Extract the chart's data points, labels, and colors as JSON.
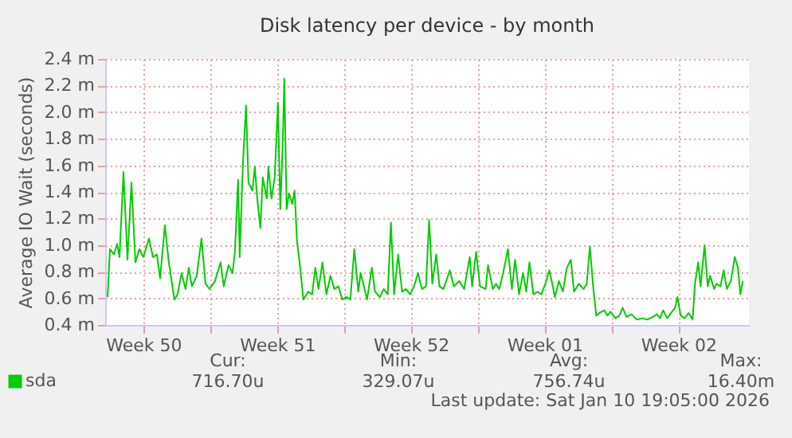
{
  "chart_data": {
    "type": "line",
    "title": "Disk latency per device - by month",
    "ylabel": "Average IO Wait (seconds)",
    "xlim": [
      "2025-12-09T12:00",
      "2026-01-12T04:48"
    ],
    "ylim": [
      0.4,
      2.4
    ],
    "xticks": [
      {
        "value": "2025-12-11T12:00",
        "label": "Week 50"
      },
      {
        "value": "2025-12-15T00:00",
        "label": null
      },
      {
        "value": "2025-12-18T12:00",
        "label": "Week 51"
      },
      {
        "value": "2025-12-22T00:00",
        "label": null
      },
      {
        "value": "2025-12-25T12:00",
        "label": "Week 52"
      },
      {
        "value": "2025-12-29T00:00",
        "label": null
      },
      {
        "value": "2026-01-01T12:00",
        "label": "Week 01"
      },
      {
        "value": "2026-01-05T00:00",
        "label": null
      },
      {
        "value": "2026-01-08T12:00",
        "label": "Week 02"
      }
    ],
    "yticks": [
      {
        "value": 0.4,
        "label": "0.4 m"
      },
      {
        "value": 0.6,
        "label": "0.6 m"
      },
      {
        "value": 0.8,
        "label": "0.8 m"
      },
      {
        "value": 1.0,
        "label": "1.0 m"
      },
      {
        "value": 1.2,
        "label": "1.2 m"
      },
      {
        "value": 1.4,
        "label": "1.4 m"
      },
      {
        "value": 1.6,
        "label": "1.6 m"
      },
      {
        "value": 1.8,
        "label": "1.8 m"
      },
      {
        "value": 2.0,
        "label": "2.0 m"
      },
      {
        "value": 2.2,
        "label": "2.2 m"
      },
      {
        "value": 2.4,
        "label": "2.4 m"
      }
    ],
    "grid": true,
    "legend": "bottom",
    "x": [
      "2025-12-09T15:00",
      "2025-12-09T18:00",
      "2025-12-09T23:00",
      "2025-12-10T03:00",
      "2025-12-10T06:00",
      "2025-12-10T11:00",
      "2025-12-10T16:00",
      "2025-12-10T21:00",
      "2025-12-11T02:00",
      "2025-12-11T07:00",
      "2025-12-11T12:00",
      "2025-12-11T19:00",
      "2025-12-12T00:00",
      "2025-12-12T05:00",
      "2025-12-12T09:00",
      "2025-12-12T15:00",
      "2025-12-12T20:00",
      "2025-12-13T03:00",
      "2025-12-13T07:00",
      "2025-12-13T12:00",
      "2025-12-13T17:00",
      "2025-12-13T21:00",
      "2025-12-14T01:00",
      "2025-12-14T07:00",
      "2025-12-14T13:00",
      "2025-12-14T18:00",
      "2025-12-14T23:00",
      "2025-12-15T06:00",
      "2025-12-15T13:00",
      "2025-12-15T17:00",
      "2025-12-15T23:00",
      "2025-12-16T04:00",
      "2025-12-16T07:00",
      "2025-12-16T11:00",
      "2025-12-16T13:00",
      "2025-12-16T17:00",
      "2025-12-16T21:00",
      "2025-12-17T00:00",
      "2025-12-17T05:00",
      "2025-12-17T08:00",
      "2025-12-17T11:00",
      "2025-12-17T15:00",
      "2025-12-17T18:00",
      "2025-12-17T23:00",
      "2025-12-18T01:00",
      "2025-12-18T05:00",
      "2025-12-18T09:00",
      "2025-12-18T13:00",
      "2025-12-18T16:00",
      "2025-12-18T19:00",
      "2025-12-18T21:00",
      "2025-12-19T00:00",
      "2025-12-19T03:00",
      "2025-12-19T07:00",
      "2025-12-19T10:00",
      "2025-12-19T13:00",
      "2025-12-19T17:00",
      "2025-12-19T21:00",
      "2025-12-20T03:00",
      "2025-12-20T08:00",
      "2025-12-20T12:00",
      "2025-12-20T16:00",
      "2025-12-20T21:00",
      "2025-12-21T02:00",
      "2025-12-21T07:00",
      "2025-12-21T12:00",
      "2025-12-21T17:00",
      "2025-12-21T22:00",
      "2025-12-22T03:00",
      "2025-12-22T08:00",
      "2025-12-22T13:00",
      "2025-12-22T18:00",
      "2025-12-22T21:00",
      "2025-12-23T02:00",
      "2025-12-23T05:00",
      "2025-12-23T11:00",
      "2025-12-23T15:00",
      "2025-12-23T21:00",
      "2025-12-24T02:00",
      "2025-12-24T07:00",
      "2025-12-24T11:00",
      "2025-12-24T15:00",
      "2025-12-24T20:00",
      "2025-12-25T01:00",
      "2025-12-25T06:00",
      "2025-12-25T11:00",
      "2025-12-25T16:00",
      "2025-12-25T21:00",
      "2025-12-26T02:00",
      "2025-12-26T07:00",
      "2025-12-26T11:00",
      "2025-12-26T15:00",
      "2025-12-26T20:00",
      "2025-12-27T00:00",
      "2025-12-27T05:00",
      "2025-12-27T13:00",
      "2025-12-27T18:00",
      "2025-12-28T01:00",
      "2025-12-28T07:00",
      "2025-12-28T14:00",
      "2025-12-28T17:00",
      "2025-12-28T22:00",
      "2025-12-29T03:00",
      "2025-12-29T10:00",
      "2025-12-29T13:00",
      "2025-12-29T19:00",
      "2025-12-29T23:00",
      "2025-12-30T03:00",
      "2025-12-30T08:00",
      "2025-12-30T14:00",
      "2025-12-30T19:00",
      "2025-12-30T23:00",
      "2025-12-31T04:00",
      "2025-12-31T09:00",
      "2025-12-31T13:00",
      "2025-12-31T17:00",
      "2025-12-31T22:00",
      "2026-01-01T03:00",
      "2026-01-01T08:00",
      "2026-01-01T13:00",
      "2026-01-01T18:00",
      "2026-01-01T21:00",
      "2026-01-02T01:00",
      "2026-01-02T06:00",
      "2026-01-02T11:00",
      "2026-01-02T16:00",
      "2026-01-02T21:00",
      "2026-01-03T01:00",
      "2026-01-03T07:00",
      "2026-01-03T13:00",
      "2026-01-03T17:00",
      "2026-01-03T21:00",
      "2026-01-04T01:00",
      "2026-01-04T05:00",
      "2026-01-04T09:00",
      "2026-01-04T15:00",
      "2026-01-04T19:00",
      "2026-01-04T23:00",
      "2026-01-05T05:00",
      "2026-01-05T10:00",
      "2026-01-05T14:00",
      "2026-01-05T19:00",
      "2026-01-06T01:00",
      "2026-01-06T08:00",
      "2026-01-06T15:00",
      "2026-01-06T21:00",
      "2026-01-07T04:00",
      "2026-01-07T09:00",
      "2026-01-07T13:00",
      "2026-01-07T17:00",
      "2026-01-07T22:00",
      "2026-01-08T03:00",
      "2026-01-08T08:00",
      "2026-01-08T11:00",
      "2026-01-08T15:00",
      "2026-01-08T20:00",
      "2026-01-09T01:00",
      "2026-01-09T06:00",
      "2026-01-09T09:00",
      "2026-01-09T13:00",
      "2026-01-09T16:00",
      "2026-01-09T21:00",
      "2026-01-10T01:00",
      "2026-01-10T04:00",
      "2026-01-10T09:00",
      "2026-01-10T12:00",
      "2026-01-10T17:00",
      "2026-01-10T21:00",
      "2026-01-11T01:00",
      "2026-01-11T06:00",
      "2026-01-11T11:00",
      "2026-01-11T15:00",
      "2026-01-11T18:00",
      "2026-01-11T21:00"
    ],
    "series": [
      {
        "name": "sda",
        "color": "#00cc00",
        "values": [
          0.61,
          0.97,
          0.93,
          1.01,
          0.91,
          1.55,
          0.89,
          1.47,
          0.87,
          0.97,
          0.91,
          1.05,
          0.91,
          0.93,
          0.75,
          1.15,
          0.87,
          0.59,
          0.63,
          0.79,
          0.67,
          0.83,
          0.69,
          0.77,
          1.05,
          0.71,
          0.67,
          0.73,
          0.87,
          0.69,
          0.85,
          0.79,
          0.95,
          1.49,
          0.91,
          1.61,
          2.05,
          1.47,
          1.41,
          1.59,
          1.35,
          1.13,
          1.51,
          1.35,
          1.59,
          1.35,
          1.51,
          2.07,
          1.27,
          1.75,
          2.25,
          1.27,
          1.39,
          1.31,
          1.41,
          1.03,
          0.83,
          0.59,
          0.65,
          0.63,
          0.83,
          0.67,
          0.87,
          0.63,
          0.77,
          0.67,
          0.69,
          0.59,
          0.61,
          0.59,
          0.97,
          0.65,
          0.79,
          0.67,
          0.59,
          0.83,
          0.65,
          0.61,
          0.67,
          0.63,
          1.17,
          0.63,
          0.93,
          0.65,
          0.67,
          0.63,
          0.69,
          0.79,
          0.67,
          0.69,
          1.19,
          0.71,
          0.93,
          0.69,
          0.67,
          0.81,
          0.69,
          0.73,
          0.67,
          0.91,
          0.69,
          0.95,
          0.69,
          0.67,
          0.85,
          0.67,
          0.71,
          0.67,
          0.79,
          0.97,
          0.67,
          0.89,
          0.63,
          0.79,
          0.65,
          0.87,
          0.63,
          0.65,
          0.63,
          0.71,
          0.81,
          0.73,
          0.61,
          0.73,
          0.65,
          0.83,
          0.89,
          0.65,
          0.71,
          0.67,
          0.71,
          0.99,
          0.69,
          0.47,
          0.49,
          0.51,
          0.47,
          0.5,
          0.45,
          0.47,
          0.53,
          0.46,
          0.48,
          0.44,
          0.45,
          0.44,
          0.46,
          0.48,
          0.45,
          0.51,
          0.45,
          0.49,
          0.53,
          0.61,
          0.47,
          0.45,
          0.49,
          0.44,
          0.71,
          0.87,
          0.69,
          1.0,
          0.69,
          0.77,
          0.67,
          0.71,
          0.69,
          0.81,
          0.67,
          0.73,
          0.91,
          0.83,
          0.63,
          0.73
        ]
      }
    ],
    "annotations": [
      "Cur:",
      "716.70u",
      "Min:",
      "329.07u",
      "Avg:",
      "756.74u",
      "Max:",
      "16.40m",
      "Last update: Sat Jan 10 19:05:00 2026"
    ]
  }
}
